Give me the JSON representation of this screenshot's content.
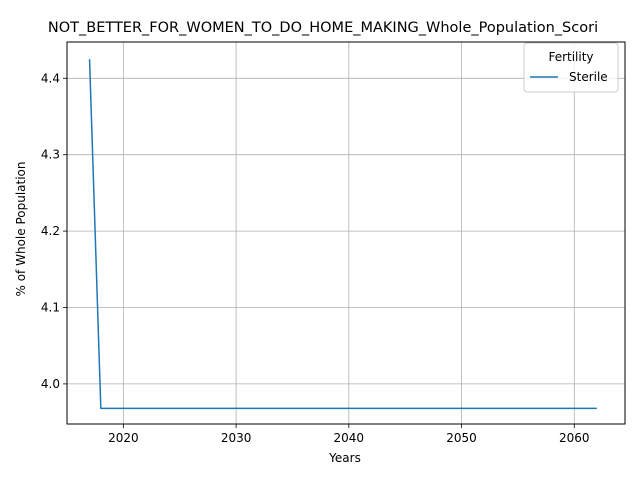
{
  "chart_data": {
    "type": "line",
    "title": "NOT_BETTER_FOR_WOMEN_TO_DO_HOME_MAKING_Whole_Population_Scori",
    "xlabel": "Years",
    "ylabel": "% of Whole Population",
    "xlim": [
      2015,
      2064.5
    ],
    "ylim": [
      3.9475,
      4.4475
    ],
    "x_ticks": [
      2020,
      2030,
      2040,
      2050,
      2060
    ],
    "y_ticks": [
      4.0,
      4.1,
      4.2,
      4.3,
      4.4
    ],
    "y_tick_labels": [
      "4.0",
      "4.1",
      "4.2",
      "4.3",
      "4.4"
    ],
    "grid": true,
    "legend": {
      "title": "Fertility",
      "position": "top-right"
    },
    "series": [
      {
        "name": "Sterile",
        "color": "#1f77b4",
        "x": [
          2017,
          2018,
          2019,
          2020,
          2021,
          2022,
          2023,
          2024,
          2025,
          2026,
          2027,
          2028,
          2029,
          2030,
          2031,
          2032,
          2033,
          2034,
          2035,
          2036,
          2037,
          2038,
          2039,
          2040,
          2041,
          2042,
          2043,
          2044,
          2045,
          2046,
          2047,
          2048,
          2049,
          2050,
          2051,
          2052,
          2053,
          2054,
          2055,
          2056,
          2057,
          2058,
          2059,
          2060,
          2061,
          2062
        ],
        "y": [
          4.425,
          3.968,
          3.968,
          3.968,
          3.968,
          3.968,
          3.968,
          3.968,
          3.968,
          3.968,
          3.968,
          3.968,
          3.968,
          3.968,
          3.968,
          3.968,
          3.968,
          3.968,
          3.968,
          3.968,
          3.968,
          3.968,
          3.968,
          3.968,
          3.968,
          3.968,
          3.968,
          3.968,
          3.968,
          3.968,
          3.968,
          3.968,
          3.968,
          3.968,
          3.968,
          3.968,
          3.968,
          3.968,
          3.968,
          3.968,
          3.968,
          3.968,
          3.968,
          3.968,
          3.968,
          3.968
        ]
      }
    ]
  }
}
